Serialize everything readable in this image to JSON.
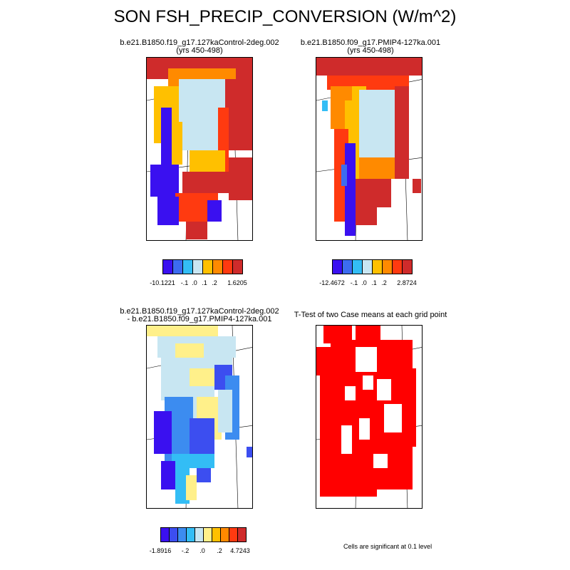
{
  "title": "SON FSH_PRECIP_CONVERSION (W/m^2)",
  "colors": {
    "palette_8": [
      "#3a10f0",
      "#3c6cf0",
      "#33bdf5",
      "#c8e6f2",
      "#ffc000",
      "#ff8a00",
      "#ff3a10",
      "#cf2b2b"
    ],
    "palette_10": [
      "#3a10f0",
      "#3c4ef0",
      "#3c8cf0",
      "#33bdf5",
      "#c8e6f2",
      "#fff08a",
      "#ffc000",
      "#ff8a00",
      "#ff3a10",
      "#cf2b2b"
    ],
    "ttest": "#ff0000"
  },
  "panels": [
    {
      "title_lines": [
        "b.e21.B1850.f19_g17.127kaControl-2deg.002",
        "(yrs 450-498)"
      ],
      "legend_ticks": [
        "-10.1221",
        "-.1",
        ".0",
        ".1",
        ".2",
        "1.6205"
      ]
    },
    {
      "title_lines": [
        "b.e21.B1850.f09_g17.PMIP4-127ka.001",
        "(yrs 450-498)"
      ],
      "legend_ticks": [
        "-12.4672",
        "-.1",
        ".0",
        ".1",
        ".2",
        "2.8724"
      ]
    },
    {
      "title_lines": [
        "b.e21.B1850.f19_g17.127kaControl-2deg.002",
        "- b.e21.B1850.f09_g17.PMIP4-127ka.001"
      ],
      "legend_ticks": [
        "-1.8916",
        "-.2",
        ".0",
        ".2",
        "4.7243"
      ]
    },
    {
      "title_lines": [
        "T-Test of two Case means at each grid point"
      ],
      "note": "Cells are significant at 0.1 level"
    }
  ]
}
